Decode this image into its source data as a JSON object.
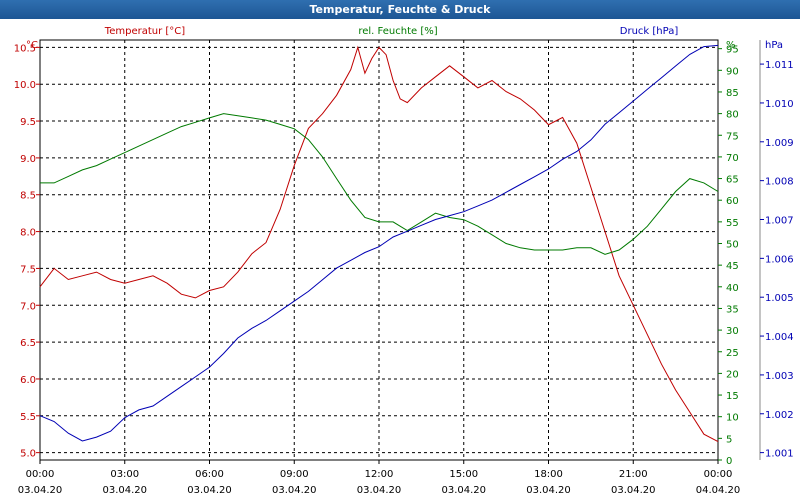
{
  "window": {
    "title": "Temperatur, Feuchte & Druck"
  },
  "colors": {
    "temperature": "#c00000",
    "humidity": "#007a00",
    "pressure": "#0000b4",
    "grid": "#000000"
  },
  "chart_data": {
    "type": "line",
    "title": "Temperatur, Feuchte & Druck",
    "grid": true,
    "x_ticks": [
      {
        "time": "00:00",
        "date": "03.04.20"
      },
      {
        "time": "03:00",
        "date": "03.04.20"
      },
      {
        "time": "06:00",
        "date": "03.04.20"
      },
      {
        "time": "09:00",
        "date": "03.04.20"
      },
      {
        "time": "12:00",
        "date": "03.04.20"
      },
      {
        "time": "15:00",
        "date": "03.04.20"
      },
      {
        "time": "18:00",
        "date": "03.04.20"
      },
      {
        "time": "21:00",
        "date": "03.04.20"
      },
      {
        "time": "00:00",
        "date": "04.04.20"
      }
    ],
    "axes": {
      "temperature": {
        "unit": "°C",
        "label": "Temperatur [°C]",
        "ylim": [
          4.9,
          10.6
        ],
        "ticks": [
          "5.0",
          "5.5",
          "6.0",
          "6.5",
          "7.0",
          "7.5",
          "8.0",
          "8.5",
          "9.0",
          "9.5",
          "10.0",
          "10.5"
        ]
      },
      "humidity": {
        "unit": "%",
        "label": "rel. Feuchte [%]",
        "ylim": [
          0,
          97
        ],
        "ticks": [
          "0",
          "5",
          "10",
          "15",
          "20",
          "25",
          "30",
          "35",
          "40",
          "45",
          "50",
          "55",
          "60",
          "65",
          "70",
          "75",
          "80",
          "85",
          "90",
          "95"
        ]
      },
      "pressure": {
        "unit": "hPa",
        "label": "Druck [hPa]",
        "ylim": [
          1000.81,
          1011.62
        ],
        "ticks": [
          "1.001",
          "1.002",
          "1.003",
          "1.004",
          "1.005",
          "1.006",
          "1.007",
          "1.008",
          "1.009",
          "1.010",
          "1.011"
        ]
      }
    },
    "series": [
      {
        "name": "Temperatur [°C]",
        "axis": "temperature",
        "x": [
          0,
          0.5,
          1,
          1.5,
          2,
          2.5,
          3,
          3.5,
          4,
          4.5,
          5,
          5.5,
          6,
          6.5,
          7,
          7.5,
          8,
          8.5,
          9,
          9.5,
          10,
          10.5,
          11,
          11.25,
          11.5,
          11.75,
          12,
          12.25,
          12.5,
          12.75,
          13,
          13.5,
          14,
          14.5,
          15,
          15.5,
          16,
          16.5,
          17,
          17.5,
          18,
          18.5,
          19,
          19.5,
          20,
          20.5,
          21,
          21.5,
          22,
          22.5,
          23,
          23.5,
          24
        ],
        "y": [
          7.25,
          7.5,
          7.35,
          7.4,
          7.45,
          7.35,
          7.3,
          7.35,
          7.4,
          7.3,
          7.15,
          7.1,
          7.2,
          7.25,
          7.45,
          7.7,
          7.85,
          8.3,
          8.9,
          9.4,
          9.6,
          9.85,
          10.2,
          10.5,
          10.15,
          10.35,
          10.5,
          10.4,
          10.05,
          9.8,
          9.75,
          9.95,
          10.1,
          10.25,
          10.1,
          9.95,
          10.05,
          9.9,
          9.8,
          9.65,
          9.45,
          9.55,
          9.2,
          8.6,
          8.0,
          7.4,
          7.0,
          6.6,
          6.2,
          5.85,
          5.55,
          5.25,
          5.15
        ]
      },
      {
        "name": "rel. Feuchte [%]",
        "axis": "humidity",
        "x": [
          0,
          0.5,
          1,
          1.5,
          2,
          2.5,
          3,
          3.5,
          4,
          4.5,
          5,
          5.5,
          6,
          6.5,
          7,
          7.5,
          8,
          8.5,
          9,
          9.5,
          10,
          10.5,
          11,
          11.5,
          12,
          12.5,
          13,
          13.5,
          14,
          14.5,
          15,
          15.5,
          16,
          16.5,
          17,
          17.5,
          18,
          18.5,
          19,
          19.5,
          20,
          20.5,
          21,
          21.5,
          22,
          22.5,
          23,
          23.5,
          24
        ],
        "y": [
          64,
          64,
          65.5,
          67,
          68,
          69.5,
          71,
          72.5,
          74,
          75.5,
          77,
          78,
          79,
          80,
          79.5,
          79,
          78.5,
          77.5,
          76.5,
          74,
          70,
          65,
          60,
          56,
          55,
          55,
          53,
          55,
          57,
          56,
          55.5,
          54,
          52,
          50,
          49,
          48.5,
          48.5,
          48.5,
          49,
          49,
          47.5,
          48.5,
          51,
          54,
          58,
          62,
          65,
          64,
          62
        ]
      },
      {
        "name": "Druck [hPa]",
        "axis": "pressure",
        "x": [
          0,
          0.5,
          1,
          1.5,
          2,
          2.5,
          3,
          3.5,
          4,
          4.5,
          5,
          5.5,
          6,
          6.5,
          7,
          7.5,
          8,
          8.5,
          9,
          9.5,
          10,
          10.5,
          11,
          11.5,
          12,
          12.5,
          13,
          13.5,
          14,
          14.5,
          15,
          15.5,
          16,
          16.5,
          17,
          17.5,
          18,
          18.5,
          19,
          19.5,
          20,
          20.5,
          21,
          21.5,
          22,
          22.5,
          23,
          23.5,
          24
        ],
        "y": [
          1001.95,
          1001.8,
          1001.5,
          1001.3,
          1001.4,
          1001.55,
          1001.9,
          1002.1,
          1002.2,
          1002.45,
          1002.7,
          1002.95,
          1003.2,
          1003.55,
          1003.95,
          1004.2,
          1004.4,
          1004.65,
          1004.9,
          1005.15,
          1005.45,
          1005.75,
          1005.95,
          1006.15,
          1006.3,
          1006.55,
          1006.7,
          1006.85,
          1007.0,
          1007.1,
          1007.2,
          1007.35,
          1007.5,
          1007.7,
          1007.9,
          1008.1,
          1008.3,
          1008.55,
          1008.75,
          1009.05,
          1009.45,
          1009.75,
          1010.05,
          1010.35,
          1010.65,
          1010.95,
          1011.25,
          1011.45,
          1011.48
        ]
      }
    ]
  }
}
